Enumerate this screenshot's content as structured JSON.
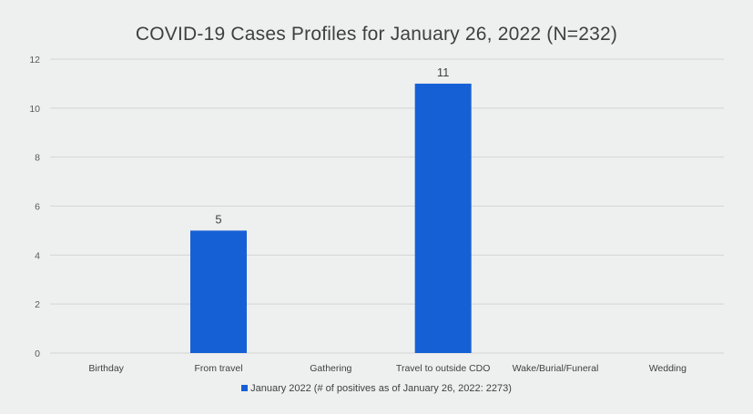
{
  "chart_data": {
    "type": "bar",
    "title": "COVID-19 Cases Profiles for January 26, 2022 (N=232)",
    "categories": [
      "Birthday",
      "From travel",
      "Gathering",
      "Travel to outside CDO",
      "Wake/Burial/Funeral",
      "Wedding"
    ],
    "series": [
      {
        "name": "January 2022 (# of positives as of January 26, 2022: 2273)",
        "values": [
          0,
          5,
          0,
          11,
          0,
          0
        ],
        "data_labels": [
          "",
          "5",
          "",
          "11",
          "",
          ""
        ]
      }
    ],
    "ylim": [
      0,
      12
    ],
    "yticks": [
      0,
      2,
      4,
      6,
      8,
      10,
      12
    ],
    "grid": true,
    "legend_position": "bottom",
    "bar_color": "#1660d6"
  }
}
